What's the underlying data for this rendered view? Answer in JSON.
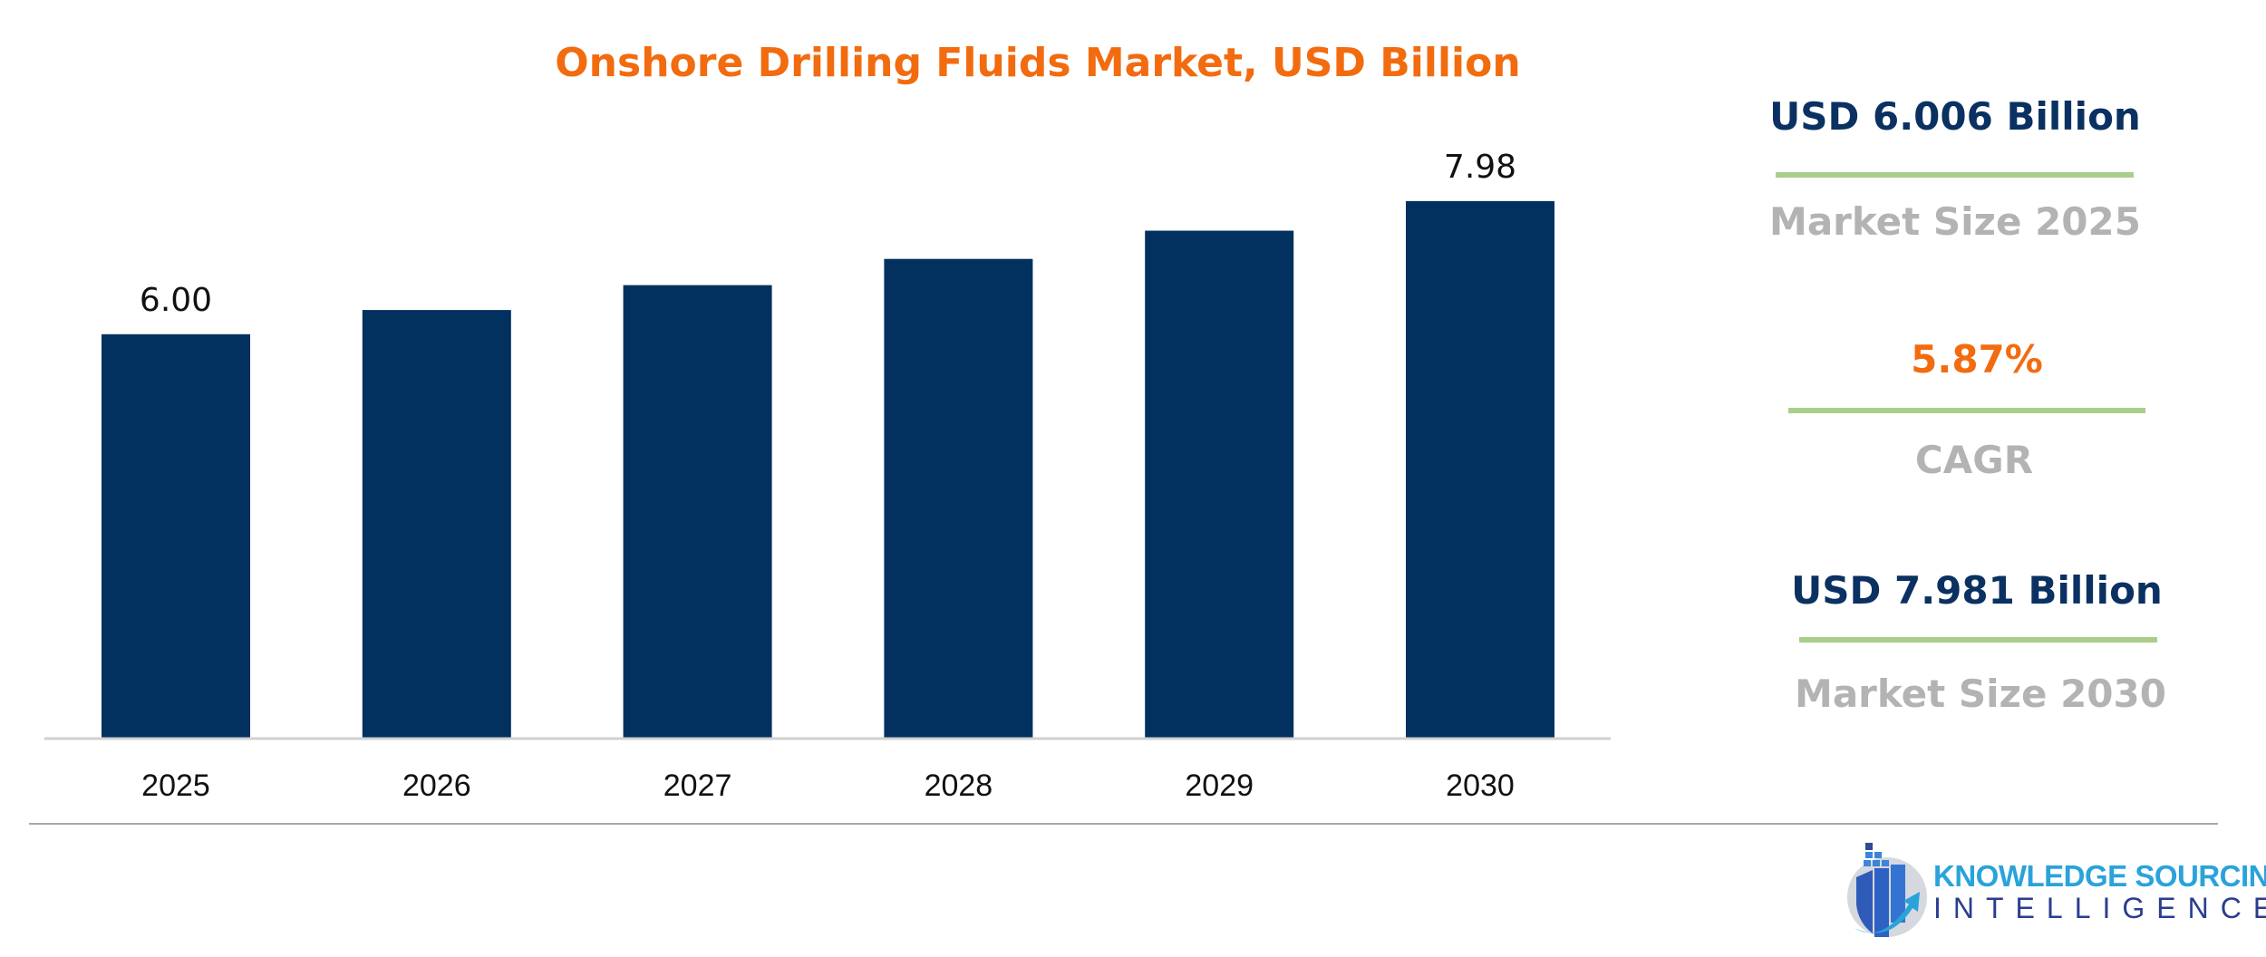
{
  "chart_data": {
    "type": "bar",
    "title": "Onshore Drilling Fluids Market, USD Billion",
    "categories": [
      "2025",
      "2026",
      "2027",
      "2028",
      "2029",
      "2030"
    ],
    "values": [
      6.0,
      6.36,
      6.73,
      7.12,
      7.54,
      7.98
    ],
    "data_labels": {
      "0": "6.00",
      "5": "7.98"
    },
    "ylim": [
      0,
      8.5
    ],
    "grid": false,
    "bar_color": "#02305F",
    "title_color": "#F26B0F"
  },
  "stats": [
    {
      "value": "USD 6.006 Billion",
      "label": "Market Size 2025"
    },
    {
      "value": "5.87%",
      "label": "CAGR"
    },
    {
      "value": "USD 7.981 Billion",
      "label": "Market Size 2030"
    }
  ],
  "logo": {
    "line1": "KNOWLEDGE SOURCING",
    "line2": "INTELLIGENCE"
  },
  "colors": {
    "navy": "#0A3161",
    "orange": "#F26B0F",
    "gray": "#B3B3B3",
    "green": "#A9CE8A"
  }
}
